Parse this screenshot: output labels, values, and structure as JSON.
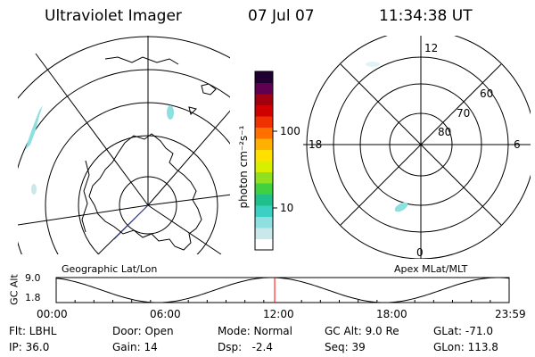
{
  "header": {
    "title": "Ultraviolet Imager",
    "date": "07 Jul 07",
    "time": "11:34:38 UT"
  },
  "colorbar": {
    "unit_label": "photon cm⁻²s⁻¹",
    "tick_100": "100",
    "tick_10": "10",
    "colors": [
      "#ffffff",
      "#c8e8ec",
      "#8edfe0",
      "#3ccfc4",
      "#20c08a",
      "#40d040",
      "#90e020",
      "#d8f000",
      "#ffe000",
      "#ffb000",
      "#ff7000",
      "#f03000",
      "#d00000",
      "#a00010",
      "#600050",
      "#200030"
    ]
  },
  "left_map": {
    "label": "Geographic Lat/Lon"
  },
  "right_map": {
    "label": "Apex MLat/MLT",
    "mlt_top": "12",
    "mlt_left": "18",
    "mlt_right": "6",
    "mlt_bottom": "0",
    "lat_60": "60",
    "lat_70": "70",
    "lat_80": "80"
  },
  "timeline": {
    "ylabel": "GC Alt",
    "y_top": "9.0",
    "y_bottom": "1.8",
    "ticks": [
      "00:00",
      "06:00",
      "12:00",
      "18:00",
      "23:59"
    ],
    "current_marker_time": "11:34:38",
    "marker_color": "#ff0000"
  },
  "status": {
    "flt": "Flt: LBHL",
    "door": "Door: Open",
    "mode": "Mode: Normal",
    "gc_alt": "GC Alt: 9.0 Re",
    "glat": "GLat: -71.0",
    "ip": "IP: 36.0",
    "gain": "Gain: 14",
    "dsp": "Dsp:   -2.4",
    "seq": "Seq: 39",
    "glon": "GLon: 113.8"
  }
}
